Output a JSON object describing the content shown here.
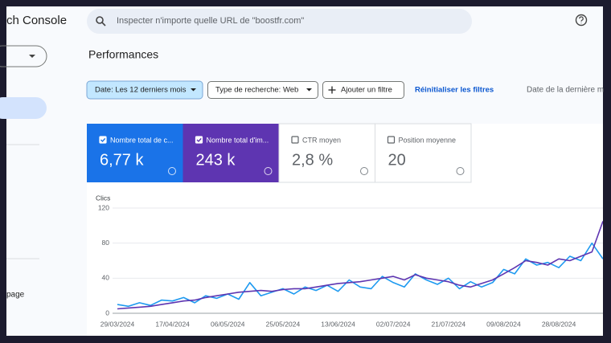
{
  "header": {
    "brand": "ch Console",
    "search_placeholder": "Inspecter n'importe quelle URL de \"boostfr.com\""
  },
  "sidebar": {
    "item": "page"
  },
  "page_title": "Performances",
  "filters": {
    "date": "Date: Les 12 derniers mois",
    "search_type": "Type de recherche: Web",
    "add": "Ajouter un filtre",
    "reset": "Réinitialiser les filtres",
    "last_update": "Date de la dernière m"
  },
  "metrics": [
    {
      "label": "Nombre total de c...",
      "value": "6,77 k",
      "checked": true,
      "color": "#1a73e8"
    },
    {
      "label": "Nombre total d'im...",
      "value": "243 k",
      "checked": true,
      "color": "#5e35b1"
    },
    {
      "label": "CTR moyen",
      "value": "2,8 %",
      "checked": false,
      "color": "#ffffff"
    },
    {
      "label": "Position moyenne",
      "value": "20",
      "checked": false,
      "color": "#ffffff"
    }
  ],
  "chart_data": {
    "type": "line",
    "y_label": "Clics",
    "categories": [
      "29/03/2024",
      null,
      null,
      null,
      null,
      "17/04/2024",
      null,
      null,
      null,
      null,
      "06/05/2024",
      null,
      null,
      null,
      null,
      "25/05/2024",
      null,
      null,
      null,
      null,
      "13/06/2024",
      null,
      null,
      null,
      null,
      "02/07/2024",
      null,
      null,
      null,
      null,
      "21/07/2024",
      null,
      null,
      null,
      null,
      "09/08/2024",
      null,
      null,
      null,
      null,
      "28/08/2024",
      null,
      null,
      null,
      null
    ],
    "series": [
      {
        "color": "#1e9af0",
        "values": [
          10,
          8,
          12,
          9,
          15,
          14,
          18,
          12,
          20,
          17,
          22,
          16,
          35,
          20,
          24,
          28,
          22,
          30,
          26,
          32,
          25,
          38,
          30,
          28,
          42,
          35,
          30,
          45,
          38,
          33,
          40,
          28,
          36,
          30,
          35,
          50,
          45,
          62,
          55,
          58,
          52,
          65,
          60,
          80,
          62
        ]
      },
      {
        "color": "#5e35b1",
        "values": [
          5,
          6,
          7,
          8,
          10,
          12,
          14,
          15,
          18,
          20,
          22,
          24,
          25,
          26,
          25,
          27,
          28,
          28,
          30,
          32,
          34,
          35,
          36,
          38,
          40,
          42,
          38,
          44,
          40,
          38,
          36,
          32,
          30,
          34,
          38,
          45,
          52,
          60,
          58,
          55,
          62,
          60,
          65,
          70,
          105
        ]
      }
    ],
    "ylim": [
      0,
      120
    ],
    "yticks": [
      0,
      40,
      80,
      120
    ],
    "grid": true
  }
}
